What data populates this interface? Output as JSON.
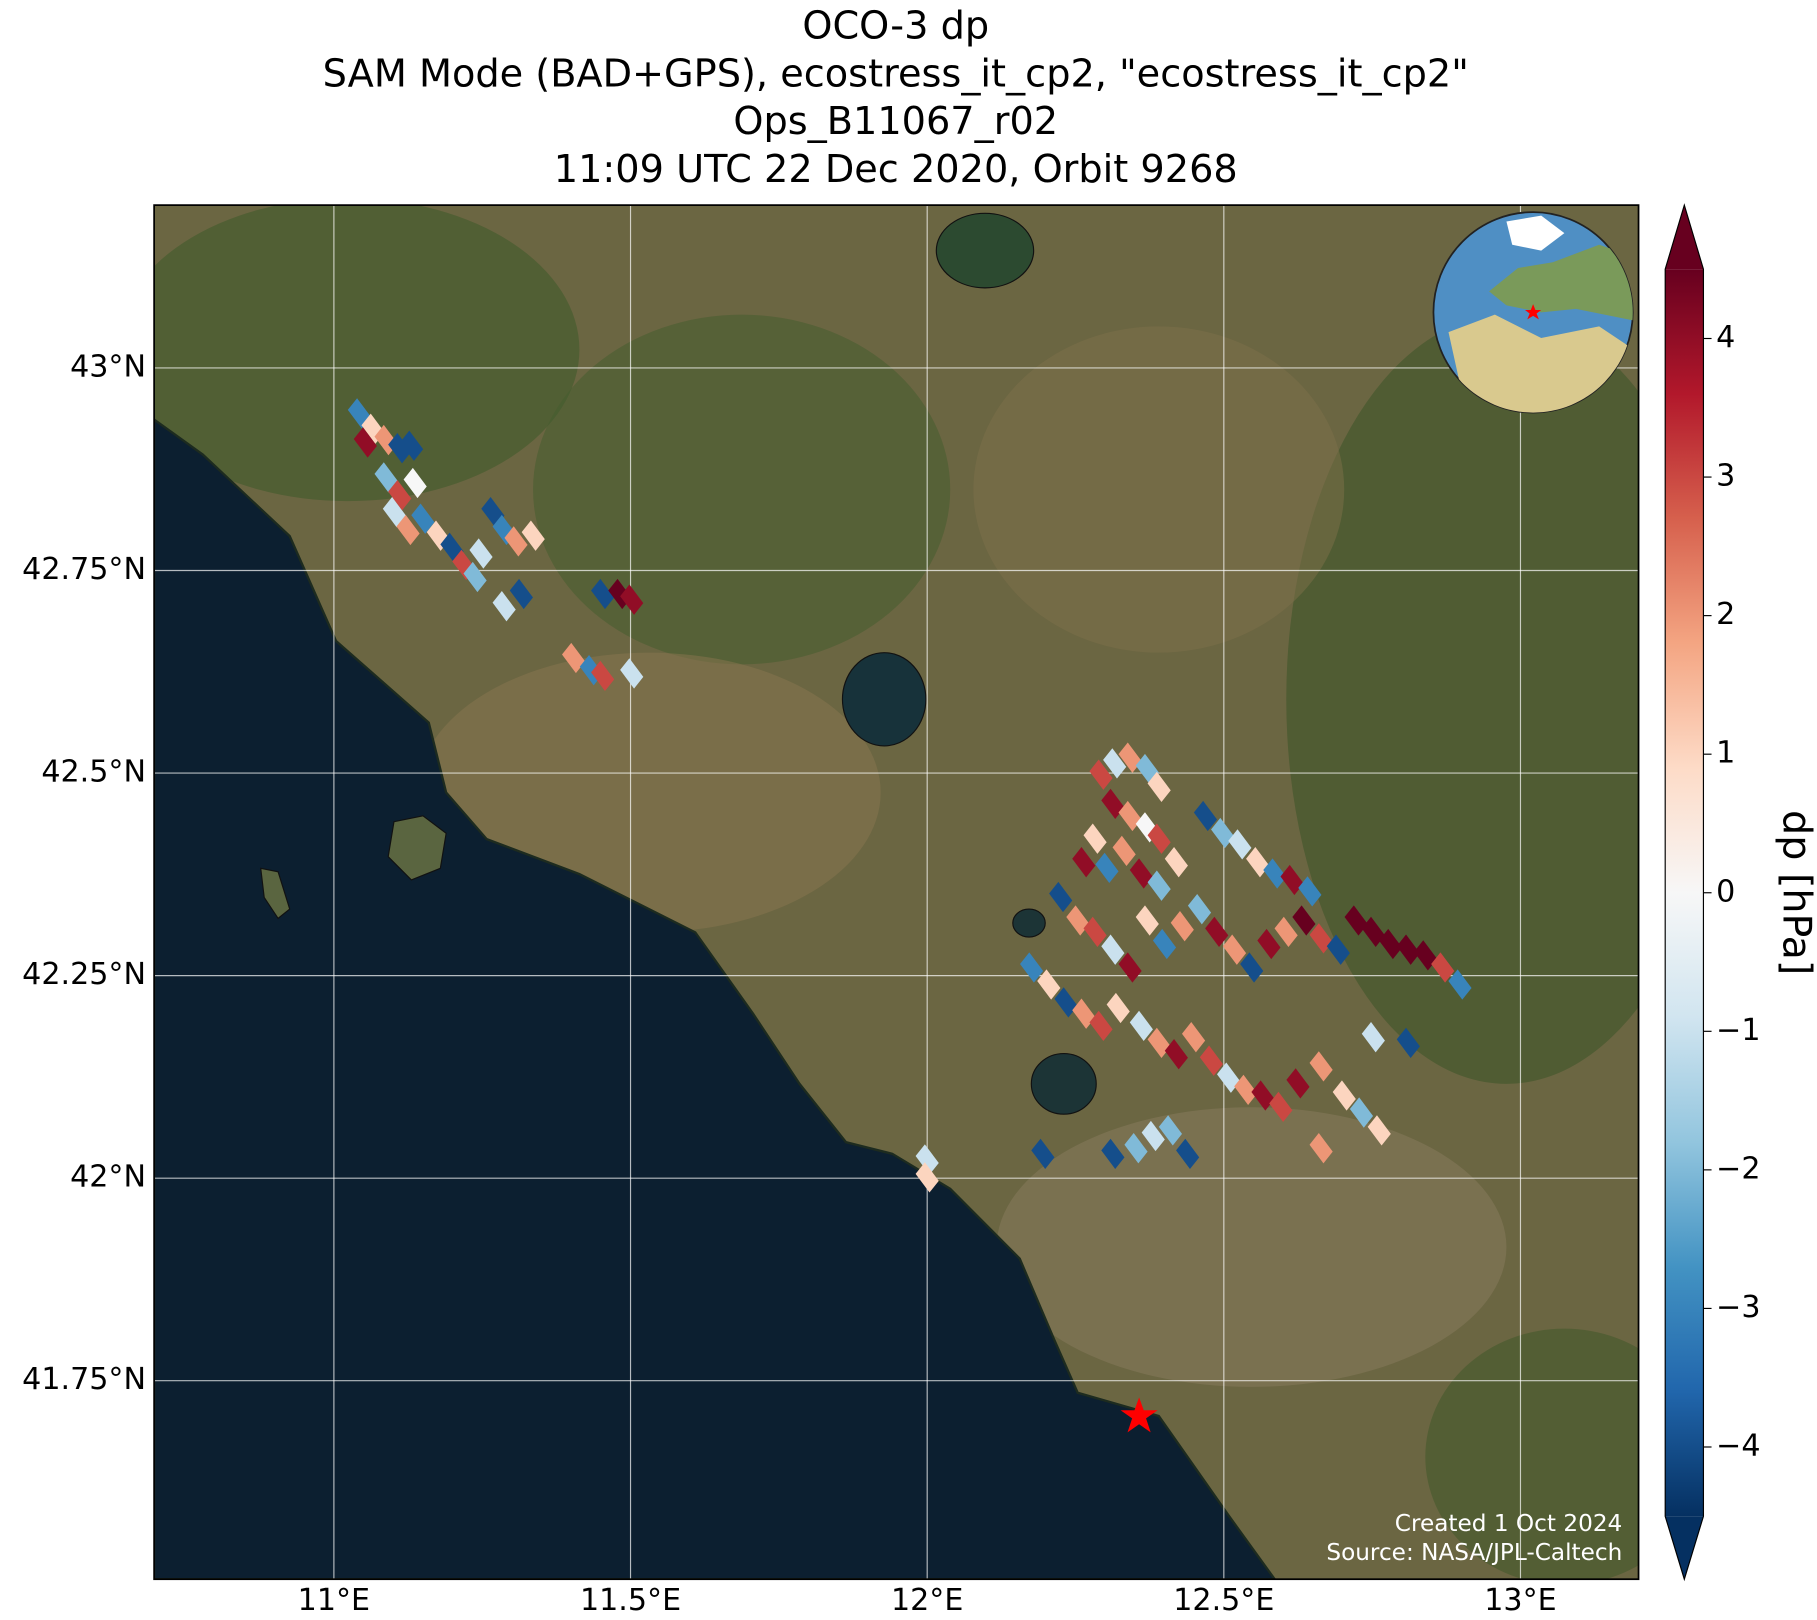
{
  "map": {
    "title_lines": [
      "OCO-3 dp",
      "SAM Mode (BAD+GPS), ecostress_it_cp2, \"ecostress_it_cp2\"",
      "Ops_B11067_r02",
      "11:09 UTC 22 Dec 2020, Orbit 9268"
    ],
    "xlim": [
      10.697,
      13.199
    ],
    "ylim": [
      41.505,
      43.201
    ],
    "lon_ticks": [
      {
        "value": 11,
        "label": "11°E"
      },
      {
        "value": 11.5,
        "label": "11.5°E"
      },
      {
        "value": 12,
        "label": "12°E"
      },
      {
        "value": 12.5,
        "label": "12.5°E"
      },
      {
        "value": 13,
        "label": "13°E"
      }
    ],
    "lat_ticks": [
      {
        "value": 41.75,
        "label": "41.75°N"
      },
      {
        "value": 42,
        "label": "42°N"
      },
      {
        "value": 42.25,
        "label": "42.25°N"
      },
      {
        "value": 42.5,
        "label": "42.5°N"
      },
      {
        "value": 42.75,
        "label": "42.75°N"
      },
      {
        "value": 43,
        "label": "43°N"
      }
    ],
    "grid": true,
    "cells": {
      "lon": [
        11.043,
        11.066,
        11.088,
        11.111,
        11.131,
        11.053,
        11.088,
        11.111,
        11.137,
        11.102,
        11.125,
        11.15,
        11.176,
        11.199,
        11.219,
        11.248,
        11.268,
        11.287,
        11.307,
        11.336,
        11.238,
        11.287,
        11.316,
        11.453,
        11.482,
        11.502,
        11.404,
        11.434,
        11.453,
        11.502,
        12.293,
        12.316,
        12.342,
        12.371,
        12.391,
        12.313,
        12.342,
        12.371,
        12.391,
        12.283,
        12.264,
        12.303,
        12.332,
        12.361,
        12.391,
        12.42,
        12.469,
        12.498,
        12.527,
        12.557,
        12.586,
        12.615,
        12.645,
        12.225,
        12.254,
        12.283,
        12.313,
        12.342,
        12.371,
        12.4,
        12.43,
        12.459,
        12.488,
        12.518,
        12.547,
        12.576,
        12.605,
        12.635,
        12.664,
        12.693,
        12.723,
        12.752,
        12.781,
        12.811,
        12.84,
        12.869,
        12.898,
        12.176,
        12.205,
        12.234,
        12.264,
        12.293,
        12.322,
        12.361,
        12.391,
        12.42,
        12.449,
        12.479,
        12.508,
        12.537,
        12.566,
        12.596,
        12.625,
        12.664,
        12.703,
        12.732,
        12.762,
        12.752,
        12.811,
        12.195,
        12.313,
        12.352,
        12.381,
        12.41,
        12.439,
        12.664,
        12.0,
        12.0
      ],
      "lat": [
        42.944,
        42.925,
        42.911,
        42.901,
        42.904,
        42.908,
        42.865,
        42.843,
        42.858,
        42.822,
        42.8,
        42.814,
        42.793,
        42.778,
        42.757,
        42.771,
        42.822,
        42.8,
        42.786,
        42.793,
        42.742,
        42.706,
        42.721,
        42.721,
        42.721,
        42.714,
        42.642,
        42.627,
        42.62,
        42.623,
        42.498,
        42.512,
        42.519,
        42.505,
        42.483,
        42.462,
        42.447,
        42.433,
        42.419,
        42.419,
        42.39,
        42.383,
        42.404,
        42.376,
        42.361,
        42.39,
        42.447,
        42.426,
        42.412,
        42.39,
        42.376,
        42.368,
        42.354,
        42.347,
        42.318,
        42.304,
        42.282,
        42.26,
        42.318,
        42.289,
        42.311,
        42.332,
        42.304,
        42.282,
        42.26,
        42.289,
        42.304,
        42.318,
        42.296,
        42.282,
        42.318,
        42.304,
        42.289,
        42.282,
        42.275,
        42.26,
        42.239,
        42.26,
        42.239,
        42.217,
        42.203,
        42.188,
        42.21,
        42.188,
        42.167,
        42.153,
        42.174,
        42.145,
        42.124,
        42.109,
        42.102,
        42.088,
        42.117,
        42.138,
        42.102,
        42.081,
        42.059,
        42.174,
        42.167,
        42.03,
        42.03,
        42.037,
        42.052,
        42.059,
        42.03,
        42.037,
        42.023,
        42.001
      ],
      "dp": [
        -3,
        1,
        2,
        -4,
        -4,
        4,
        -2,
        3,
        0,
        -1,
        2,
        -3,
        1,
        -4,
        3,
        -1,
        -4,
        -3,
        2,
        1,
        -2,
        -1,
        -4,
        -4,
        4.5,
        4,
        2,
        -3,
        3,
        -1,
        3,
        -1,
        2,
        -2,
        1,
        4,
        2,
        0,
        3,
        1,
        4,
        -3,
        2,
        4,
        -2,
        1,
        -4,
        -2,
        -1,
        1,
        -3,
        4,
        -3,
        -4,
        2,
        3,
        -1,
        4,
        1,
        -3,
        2,
        -2,
        4,
        2,
        -4,
        4,
        2,
        4.5,
        3,
        -4,
        4.5,
        4.5,
        4.5,
        4.5,
        4.5,
        3,
        -3,
        -3,
        1,
        -4,
        2,
        3,
        1,
        -1,
        2,
        4,
        2,
        3,
        -1,
        2,
        4,
        3,
        4,
        2,
        1,
        -2,
        1,
        -1,
        -4,
        -4,
        -4,
        -2,
        -1,
        -2,
        -4,
        2,
        -1,
        1
      ]
    },
    "credits": [
      "Created 1 Oct 2024",
      "Source: NASA/JPL-Caltech"
    ]
  },
  "colorbar": {
    "label": "dp [hPa]",
    "clim": [
      -4.5,
      4.5
    ],
    "ticks": [
      {
        "value": -4,
        "label": "−4"
      },
      {
        "value": -3,
        "label": "−3"
      },
      {
        "value": -2,
        "label": "−2"
      },
      {
        "value": -1,
        "label": "−1"
      },
      0,
      1,
      2,
      3,
      4
    ],
    "colormap": [
      "#053061",
      "#2166ac",
      "#4393c3",
      "#92c5de",
      "#d1e5f0",
      "#f7f7f7",
      "#fddbc7",
      "#f4a582",
      "#d6604d",
      "#b2182b",
      "#67001f"
    ]
  }
}
